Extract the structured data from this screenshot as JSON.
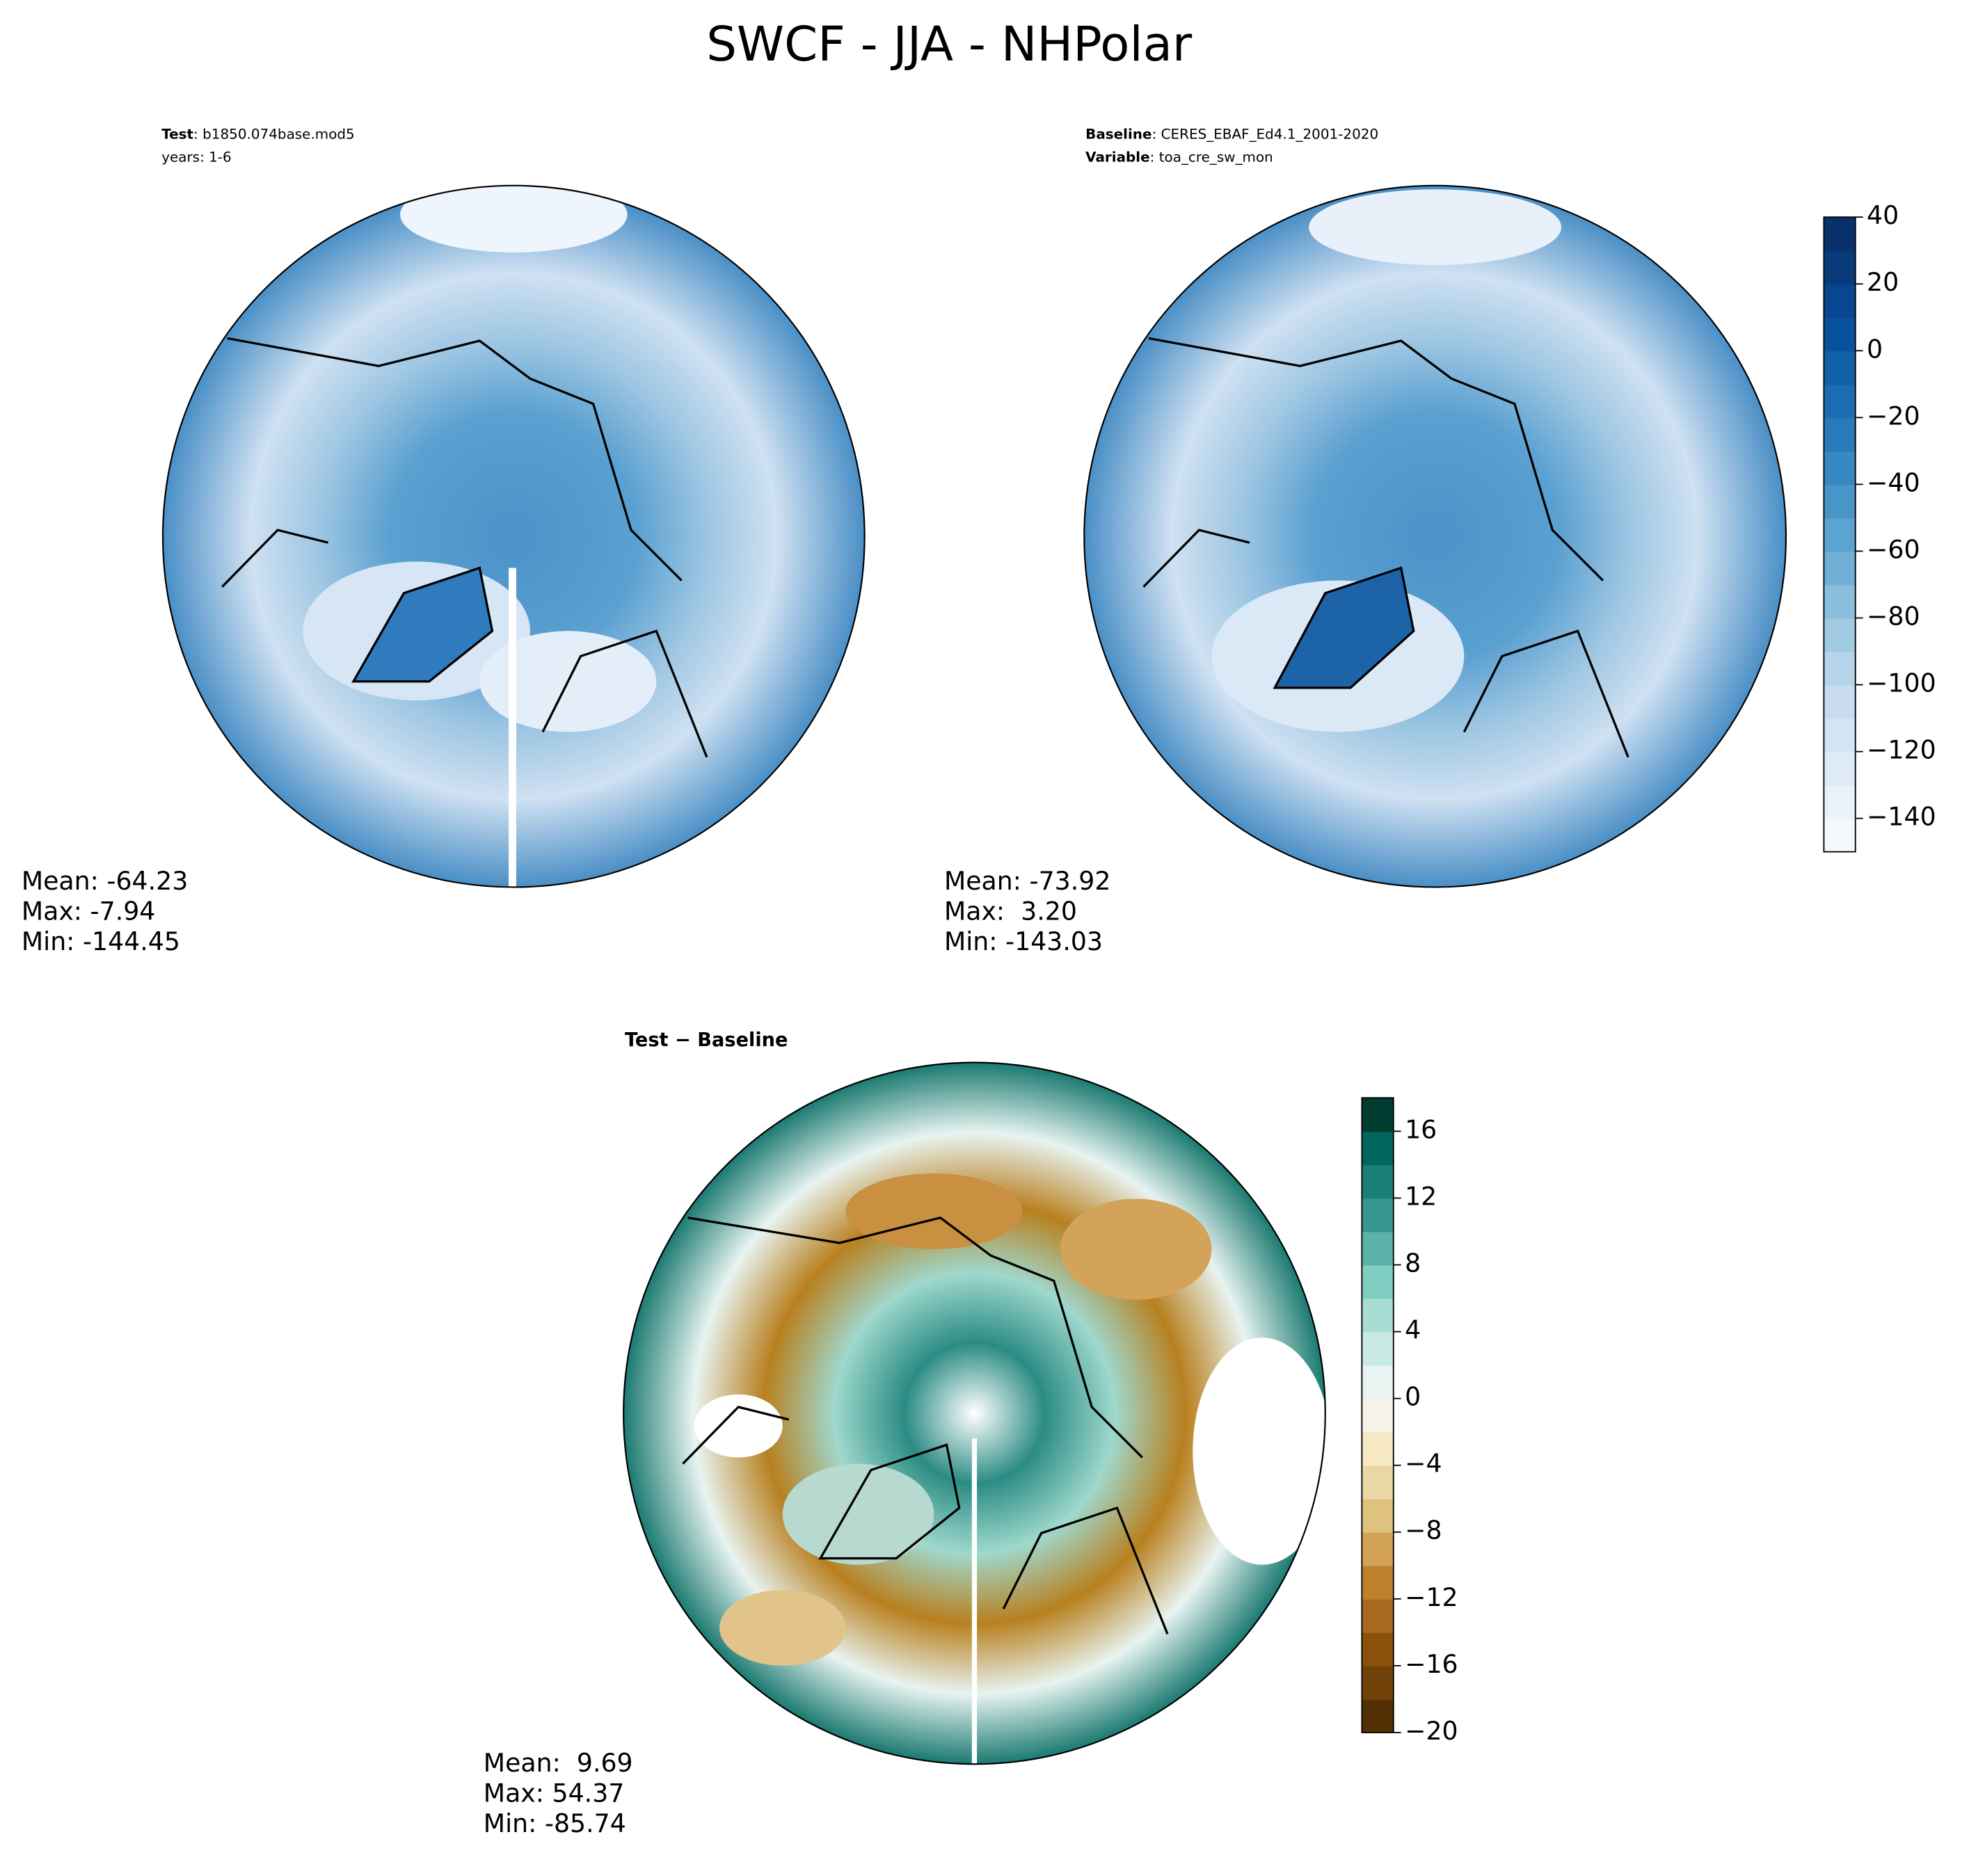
{
  "title": "SWCF - JJA - NHPolar",
  "chart_data": [
    {
      "type": "polar-map",
      "subtitle_lines": [
        {
          "bold": "Test",
          "text": ": b1850.074base.mod5"
        },
        {
          "text": "years: 1-6"
        }
      ],
      "stats": [
        "Mean: -64.23",
        "Max: -7.94",
        "Min: -144.45"
      ]
    },
    {
      "type": "polar-map",
      "subtitle_lines": [
        {
          "bold": "Baseline",
          "text": ": CERES_EBAF_Ed4.1_2001-2020"
        },
        {
          "bold": "Variable",
          "text": ": toa_cre_sw_mon"
        }
      ],
      "stats": [
        "Mean: -73.92",
        "Max:  3.20",
        "Min: -143.03"
      ],
      "colorbar": {
        "ylim": [
          -150,
          40
        ],
        "yticks": [
          {
            "value": -140,
            "label": "−140"
          },
          {
            "value": -120,
            "label": "−120"
          },
          {
            "value": -100,
            "label": "−100"
          },
          {
            "value": -80,
            "label": "−80"
          },
          {
            "value": -60,
            "label": "−60"
          },
          {
            "value": -40,
            "label": "−40"
          },
          {
            "value": -20,
            "label": "−20"
          },
          0,
          20,
          40
        ],
        "colors": [
          "#f3f8fd",
          "#e9f2fa",
          "#deebf7",
          "#d3e4f3",
          "#c7dcef",
          "#b5d4e9",
          "#a1cae3",
          "#89bedc",
          "#70b0d6",
          "#5ba3d0",
          "#4895c8",
          "#3787c0",
          "#2a7ab9",
          "#1d6cb1",
          "#1260a8",
          "#08529d",
          "#084690",
          "#083a7a",
          "#08306b"
        ]
      }
    },
    {
      "type": "polar-map",
      "subtitle_lines": [
        {
          "bold": "Test − Baseline"
        }
      ],
      "stats": [
        "Mean:  9.69",
        "Max: 54.37",
        "Min: -85.74"
      ],
      "colorbar": {
        "ylim": [
          -20,
          18
        ],
        "yticks": [
          {
            "value": -20,
            "label": "−20"
          },
          {
            "value": -16,
            "label": "−16"
          },
          {
            "value": -12,
            "label": "−12"
          },
          {
            "value": -8,
            "label": "−8"
          },
          {
            "value": -4,
            "label": "−4"
          },
          0,
          4,
          8,
          12,
          16
        ],
        "colors": [
          "#543005",
          "#70420a",
          "#8c510a",
          "#a66b1e",
          "#bf812d",
          "#d2a356",
          "#dfc27d",
          "#ead7a5",
          "#f6e8c3",
          "#f5f2e8",
          "#e9f4f2",
          "#c7eae5",
          "#a8ddd3",
          "#80cdc1",
          "#5ab2a8",
          "#35978f",
          "#1a7f77",
          "#01665e",
          "#003c30"
        ]
      }
    }
  ]
}
